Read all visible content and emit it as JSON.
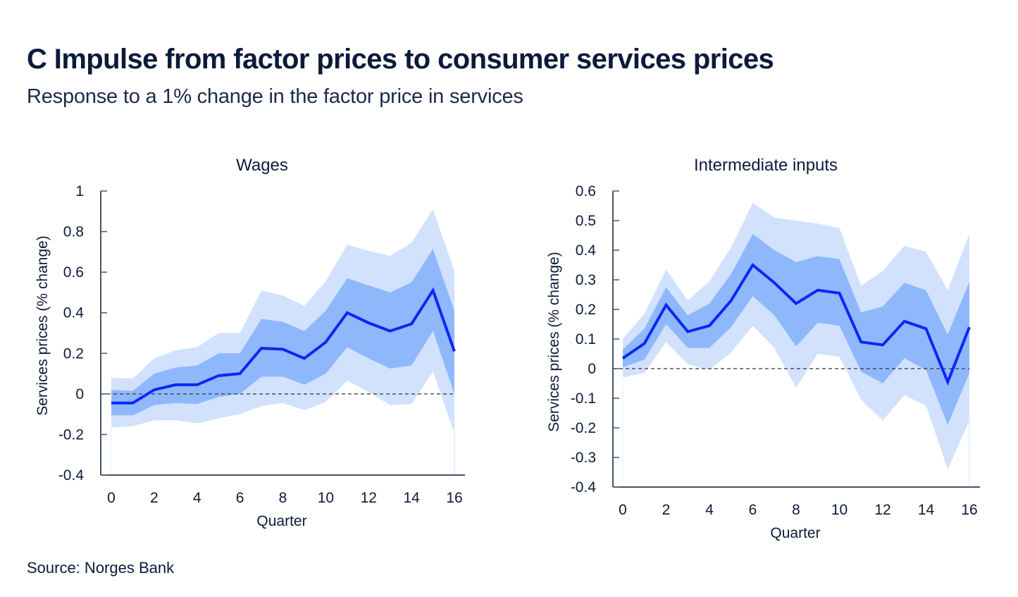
{
  "header": {
    "title": "C Impulse from factor prices to consumer services prices",
    "subtitle": "Response to a 1% change in the factor price in services"
  },
  "footer": {
    "source": "Source: Norges Bank"
  },
  "colors": {
    "line": "#0a28f5",
    "inner_band": "#8fb8fc",
    "outer_band": "#d2e2fd",
    "axis": "#0c1a3a",
    "zero_line": "#333333"
  },
  "chart_data": [
    {
      "type": "area",
      "title": "Wages",
      "xlabel": "Quarter",
      "ylabel": "Services prices (% change)",
      "xlim": [
        0,
        16
      ],
      "ylim": [
        -0.4,
        1.0
      ],
      "x_ticks": [
        "0",
        "2",
        "4",
        "6",
        "8",
        "10",
        "12",
        "14",
        "16"
      ],
      "y_ticks": [
        "1",
        "0.8",
        "0.6",
        "0.4",
        "0.2",
        "0",
        "-0.2",
        "-0.4"
      ],
      "y_tick_values": [
        1.0,
        0.8,
        0.6,
        0.4,
        0.2,
        0.0,
        -0.2,
        -0.4
      ],
      "x_tick_values": [
        0,
        2,
        4,
        6,
        8,
        10,
        12,
        14,
        16
      ],
      "reference_line": 0,
      "grid": false,
      "legend": "none",
      "x": [
        0,
        1,
        2,
        3,
        4,
        5,
        6,
        7,
        8,
        9,
        10,
        11,
        12,
        13,
        14,
        15,
        16
      ],
      "series": [
        {
          "name": "Point estimate",
          "kind": "line",
          "values": [
            -0.045,
            -0.045,
            0.02,
            0.045,
            0.045,
            0.09,
            0.1,
            0.225,
            0.22,
            0.175,
            0.255,
            0.4,
            0.35,
            0.31,
            0.345,
            0.51,
            0.21
          ]
        },
        {
          "name": "Inner band upper",
          "kind": "band",
          "values": [
            0.02,
            0.015,
            0.1,
            0.13,
            0.14,
            0.2,
            0.2,
            0.37,
            0.355,
            0.31,
            0.41,
            0.57,
            0.535,
            0.5,
            0.55,
            0.715,
            0.41
          ]
        },
        {
          "name": "Inner band lower",
          "kind": "band",
          "values": [
            -0.105,
            -0.105,
            -0.055,
            -0.045,
            -0.05,
            -0.015,
            0.0,
            0.085,
            0.085,
            0.045,
            0.1,
            0.23,
            0.175,
            0.125,
            0.14,
            0.31,
            0.0
          ]
        },
        {
          "name": "Outer band upper",
          "kind": "band",
          "values": [
            0.08,
            0.075,
            0.175,
            0.215,
            0.23,
            0.3,
            0.3,
            0.51,
            0.485,
            0.435,
            0.555,
            0.735,
            0.705,
            0.68,
            0.745,
            0.91,
            0.605
          ]
        },
        {
          "name": "Outer band lower",
          "kind": "band",
          "values": [
            -0.165,
            -0.16,
            -0.13,
            -0.13,
            -0.145,
            -0.12,
            -0.1,
            -0.06,
            -0.045,
            -0.08,
            -0.04,
            0.065,
            0.01,
            -0.055,
            -0.05,
            0.11,
            -0.195
          ]
        }
      ]
    },
    {
      "type": "area",
      "title": "Intermediate inputs",
      "xlabel": "Quarter",
      "ylabel": "Services prices (% change)",
      "xlim": [
        0,
        16
      ],
      "ylim": [
        -0.4,
        0.6
      ],
      "x_ticks": [
        "0",
        "2",
        "4",
        "6",
        "8",
        "10",
        "12",
        "14",
        "16"
      ],
      "y_ticks": [
        "0.6",
        "0.5",
        "0.4",
        "0.3",
        "0.2",
        "0.1",
        "0",
        "-0.1",
        "-0.2",
        "-0.3",
        "-0.4"
      ],
      "y_tick_values": [
        0.6,
        0.5,
        0.4,
        0.3,
        0.2,
        0.1,
        0.0,
        -0.1,
        -0.2,
        -0.3,
        -0.4
      ],
      "x_tick_values": [
        0,
        2,
        4,
        6,
        8,
        10,
        12,
        14,
        16
      ],
      "reference_line": 0,
      "grid": false,
      "legend": "none",
      "x": [
        0,
        1,
        2,
        3,
        4,
        5,
        6,
        7,
        8,
        9,
        10,
        11,
        12,
        13,
        14,
        15,
        16
      ],
      "series": [
        {
          "name": "Point estimate",
          "kind": "line",
          "values": [
            0.035,
            0.085,
            0.215,
            0.125,
            0.145,
            0.23,
            0.35,
            0.29,
            0.22,
            0.265,
            0.255,
            0.09,
            0.08,
            0.16,
            0.135,
            -0.045,
            0.14
          ]
        },
        {
          "name": "Inner band upper",
          "kind": "band",
          "values": [
            0.065,
            0.135,
            0.275,
            0.18,
            0.22,
            0.32,
            0.455,
            0.4,
            0.36,
            0.38,
            0.37,
            0.19,
            0.21,
            0.29,
            0.265,
            0.115,
            0.295
          ]
        },
        {
          "name": "Inner band lower",
          "kind": "band",
          "values": [
            0.005,
            0.03,
            0.15,
            0.07,
            0.07,
            0.14,
            0.245,
            0.18,
            0.075,
            0.155,
            0.145,
            -0.01,
            -0.05,
            0.035,
            -0.005,
            -0.19,
            -0.015
          ]
        },
        {
          "name": "Outer band upper",
          "kind": "band",
          "values": [
            0.1,
            0.185,
            0.335,
            0.23,
            0.295,
            0.41,
            0.56,
            0.51,
            0.5,
            0.49,
            0.475,
            0.28,
            0.33,
            0.415,
            0.395,
            0.265,
            0.455
          ]
        },
        {
          "name": "Outer band lower",
          "kind": "band",
          "values": [
            -0.03,
            -0.015,
            0.09,
            0.015,
            -0.005,
            0.055,
            0.145,
            0.07,
            -0.065,
            0.05,
            0.04,
            -0.105,
            -0.175,
            -0.09,
            -0.125,
            -0.34,
            -0.175
          ]
        }
      ]
    }
  ]
}
